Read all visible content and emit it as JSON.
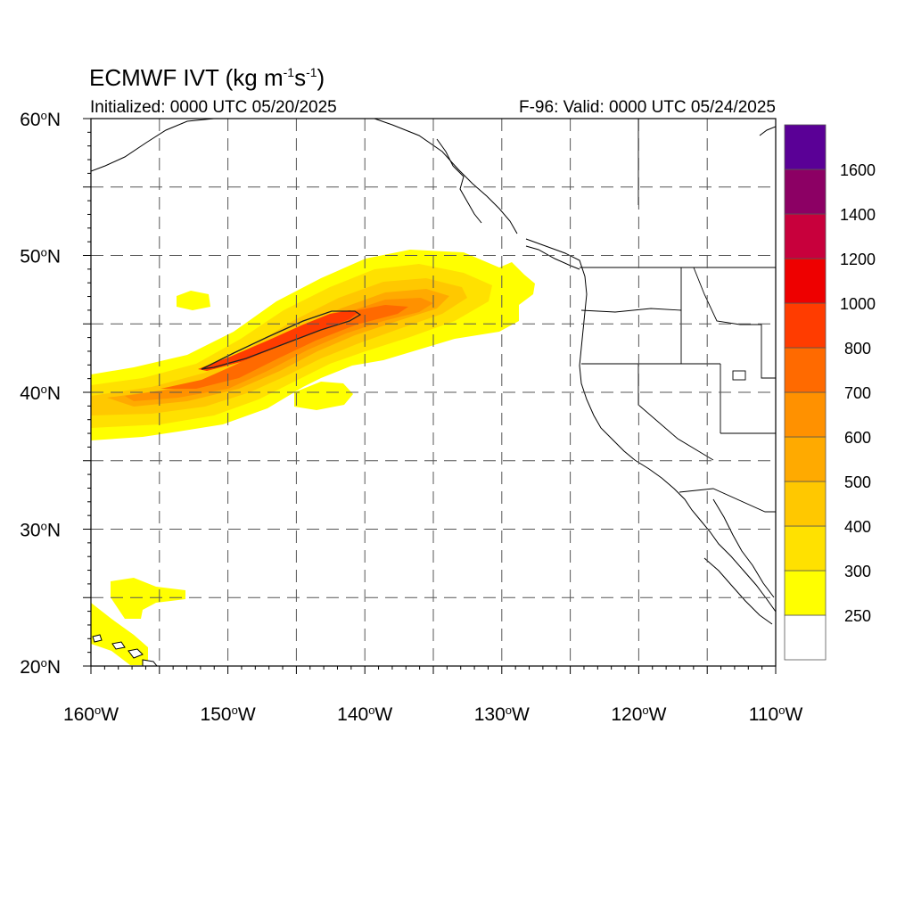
{
  "title": {
    "main": "ECMWF IVT (kg m",
    "sup1": "-1",
    "mid": "s",
    "sup2": "-1",
    "end": ")"
  },
  "initialized": "Initialized: 0000 UTC 05/20/2025",
  "valid": "F-96: Valid: 0000 UTC 05/24/2025",
  "map": {
    "projection": "cylindrical-equidistant",
    "lon_range": [
      -160,
      -110
    ],
    "lat_range": [
      20,
      60
    ],
    "grid": "dashed-5-degree",
    "lat_labels": [
      {
        "deg": "60",
        "hemi": "N",
        "lat": 60
      },
      {
        "deg": "50",
        "hemi": "N",
        "lat": 50
      },
      {
        "deg": "40",
        "hemi": "N",
        "lat": 40
      },
      {
        "deg": "30",
        "hemi": "N",
        "lat": 30
      },
      {
        "deg": "20",
        "hemi": "N",
        "lat": 20
      }
    ],
    "lon_labels": [
      {
        "deg": "160",
        "hemi": "W",
        "lon": -160
      },
      {
        "deg": "150",
        "hemi": "W",
        "lon": -150
      },
      {
        "deg": "140",
        "hemi": "W",
        "lon": -140
      },
      {
        "deg": "130",
        "hemi": "W",
        "lon": -130
      },
      {
        "deg": "120",
        "hemi": "W",
        "lon": -120
      },
      {
        "deg": "110",
        "hemi": "W",
        "lon": -110
      }
    ],
    "features": [
      "atmospheric-river-plume",
      "north-america-coastline",
      "us-state-boundaries",
      "hawaiian-islands"
    ]
  },
  "colorbar": {
    "levels": [
      "250",
      "300",
      "400",
      "500",
      "600",
      "700",
      "800",
      "1000",
      "1200",
      "1400",
      "1600"
    ],
    "colors": [
      "#ffffff",
      "#ffff00",
      "#ffe100",
      "#ffc800",
      "#ffaa00",
      "#ff9100",
      "#ff6a00",
      "#ff3c00",
      "#ee0000",
      "#c8003c",
      "#8c0064",
      "#5a0096"
    ]
  }
}
